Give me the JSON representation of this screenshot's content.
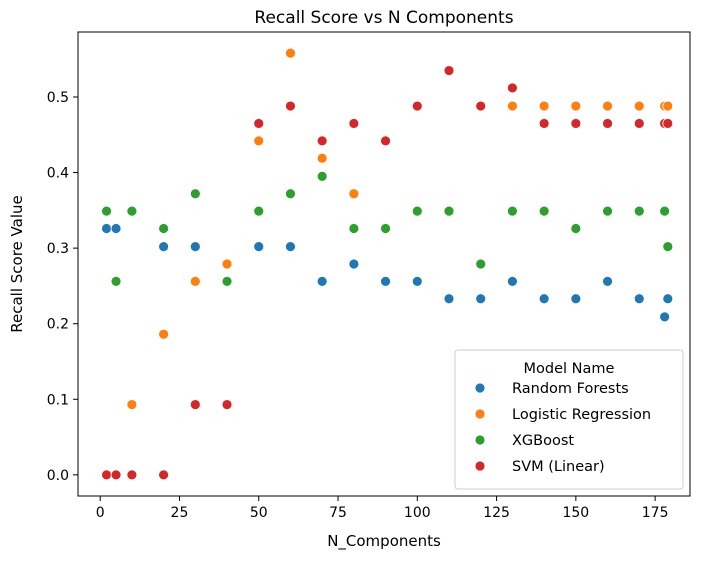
{
  "chart_data": {
    "type": "scatter",
    "title": "Recall Score vs N Components",
    "xlabel": "N_Components",
    "ylabel": "Recall Score Value",
    "xlim": [
      -7,
      186
    ],
    "ylim": [
      -0.028,
      0.586
    ],
    "xticks": [
      0,
      25,
      50,
      75,
      100,
      125,
      150,
      175
    ],
    "yticks": [
      0.0,
      0.1,
      0.2,
      0.3,
      0.4,
      0.5
    ],
    "grid": false,
    "legend": {
      "title": "Model Name",
      "placement": "lower-right"
    },
    "series": [
      {
        "name": "Random Forests",
        "color": "#1f77b4",
        "x": [
          2,
          5,
          10,
          20,
          30,
          50,
          60,
          70,
          80,
          90,
          100,
          110,
          120,
          130,
          140,
          150,
          160,
          170,
          178,
          179
        ],
        "y": [
          0.326,
          0.326,
          0.349,
          0.302,
          0.302,
          0.302,
          0.302,
          0.256,
          0.279,
          0.256,
          0.256,
          0.233,
          0.233,
          0.256,
          0.233,
          0.233,
          0.256,
          0.233,
          0.209,
          0.233
        ]
      },
      {
        "name": "Logistic Regression",
        "color": "#ff7f0e",
        "x": [
          10,
          20,
          30,
          40,
          50,
          60,
          70,
          80,
          130,
          140,
          150,
          160,
          170,
          178,
          179
        ],
        "y": [
          0.093,
          0.186,
          0.256,
          0.279,
          0.442,
          0.558,
          0.419,
          0.372,
          0.488,
          0.488,
          0.488,
          0.488,
          0.488,
          0.488,
          0.488
        ]
      },
      {
        "name": "XGBoost",
        "color": "#2ca02c",
        "x": [
          2,
          5,
          10,
          20,
          30,
          40,
          50,
          60,
          70,
          80,
          90,
          100,
          110,
          120,
          130,
          140,
          150,
          160,
          170,
          178,
          179
        ],
        "y": [
          0.349,
          0.256,
          0.349,
          0.326,
          0.372,
          0.256,
          0.349,
          0.372,
          0.395,
          0.326,
          0.326,
          0.349,
          0.349,
          0.279,
          0.349,
          0.349,
          0.326,
          0.349,
          0.349,
          0.349,
          0.302
        ]
      },
      {
        "name": "SVM (Linear)",
        "color": "#d62728",
        "x": [
          2,
          5,
          10,
          20,
          30,
          40,
          50,
          60,
          70,
          80,
          90,
          100,
          110,
          120,
          130,
          140,
          150,
          160,
          170,
          178,
          179
        ],
        "y": [
          0.0,
          0.0,
          0.0,
          0.0,
          0.093,
          0.093,
          0.465,
          0.488,
          0.442,
          0.465,
          0.442,
          0.488,
          0.535,
          0.488,
          0.512,
          0.465,
          0.465,
          0.465,
          0.465,
          0.465,
          0.465
        ]
      }
    ]
  }
}
